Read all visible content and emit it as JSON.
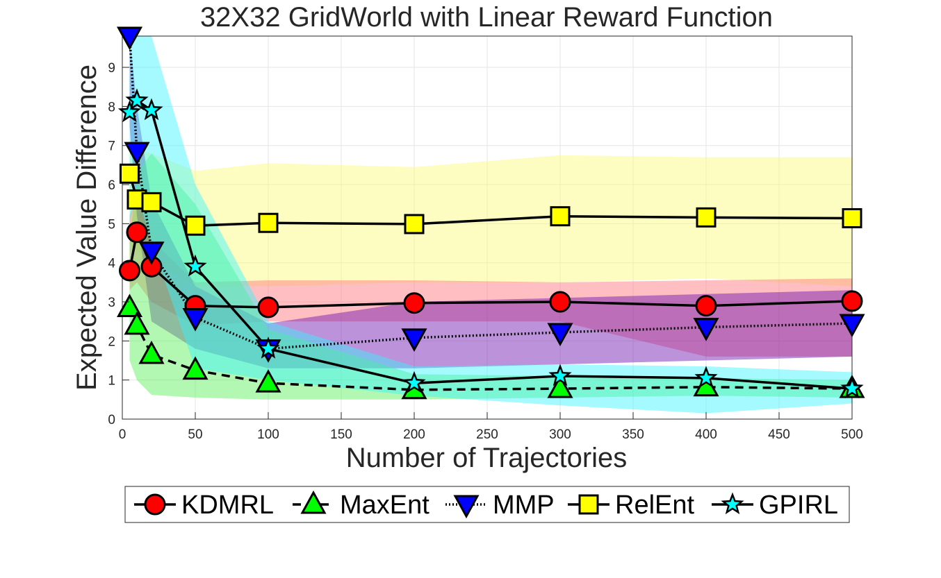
{
  "chart_data": {
    "type": "line",
    "title": "32X32 GridWorld with Linear Reward Function",
    "xlabel": "Number of Trajectories",
    "ylabel": "Expected Value Difference",
    "xlim": [
      0,
      500
    ],
    "ylim": [
      0,
      9.8
    ],
    "xticks": [
      "0",
      "50",
      "100",
      "150",
      "200",
      "250",
      "300",
      "350",
      "400",
      "450",
      "500"
    ],
    "yticks": [
      "0",
      "1",
      "2",
      "3",
      "4",
      "5",
      "6",
      "7",
      "8",
      "9"
    ],
    "grid": true,
    "legend_position": "bottom-outside",
    "x": [
      5,
      10,
      20,
      50,
      100,
      200,
      300,
      400,
      500
    ],
    "series": [
      {
        "name": "KDMRL",
        "marker": "circle",
        "line": "solid",
        "color": "#ff0000",
        "band_color": "#ff6e78",
        "values": [
          3.8,
          4.78,
          3.9,
          2.9,
          2.86,
          2.97,
          3.0,
          2.9,
          3.02
        ],
        "lower": [
          3.3,
          3.5,
          3.0,
          2.4,
          2.5,
          2.5,
          2.5,
          1.6,
          1.6
        ],
        "upper": [
          5.2,
          5.8,
          4.6,
          3.5,
          3.55,
          3.55,
          3.5,
          3.55,
          3.6
        ]
      },
      {
        "name": "MaxEnt",
        "marker": "triangle-up",
        "line": "dashed",
        "color": "#00ff00",
        "band_color": "#55f055",
        "values": [
          2.85,
          2.4,
          1.65,
          1.25,
          0.92,
          0.75,
          0.78,
          0.82,
          0.78
        ],
        "lower": [
          1.5,
          1.0,
          0.62,
          0.55,
          0.5,
          0.5,
          0.55,
          0.6,
          0.55
        ],
        "upper": [
          4.5,
          6.3,
          6.8,
          5.5,
          2.3,
          1.15,
          1.1,
          1.05,
          1.0
        ]
      },
      {
        "name": "MMP",
        "marker": "triangle-down",
        "line": "dotted",
        "color": "#0000ff",
        "band_color": "#6a0dad",
        "values": [
          9.8,
          6.85,
          4.3,
          2.6,
          1.8,
          2.08,
          2.22,
          2.35,
          2.45
        ],
        "lower": [
          7.5,
          5.2,
          2.5,
          1.8,
          1.3,
          1.3,
          1.4,
          1.5,
          1.6
        ],
        "upper": [
          9.8,
          8.0,
          5.6,
          3.4,
          2.45,
          3.0,
          3.1,
          3.2,
          3.3
        ]
      },
      {
        "name": "RelEnt",
        "marker": "square",
        "line": "solid",
        "color": "#ffff00",
        "band_color": "#fafa78",
        "values": [
          6.28,
          5.62,
          5.55,
          4.95,
          5.02,
          4.99,
          5.19,
          5.16,
          5.14
        ],
        "lower": [
          4.5,
          4.3,
          4.1,
          3.4,
          3.4,
          3.5,
          3.5,
          3.6,
          3.4
        ],
        "upper": [
          7.0,
          6.9,
          6.8,
          6.35,
          6.55,
          6.45,
          6.75,
          6.7,
          6.7
        ]
      },
      {
        "name": "GPIRL",
        "marker": "star",
        "line": "solid",
        "color": "#00ffff",
        "band_color": "#35f5ff",
        "values": [
          7.85,
          8.15,
          7.9,
          3.9,
          1.8,
          0.92,
          1.1,
          1.05,
          0.78
        ],
        "lower": [
          5.0,
          5.8,
          4.5,
          1.3,
          1.0,
          0.6,
          0.35,
          0.15,
          0.4
        ],
        "upper": [
          9.8,
          9.8,
          9.8,
          6.0,
          2.5,
          1.35,
          1.4,
          1.35,
          1.2
        ]
      }
    ]
  }
}
